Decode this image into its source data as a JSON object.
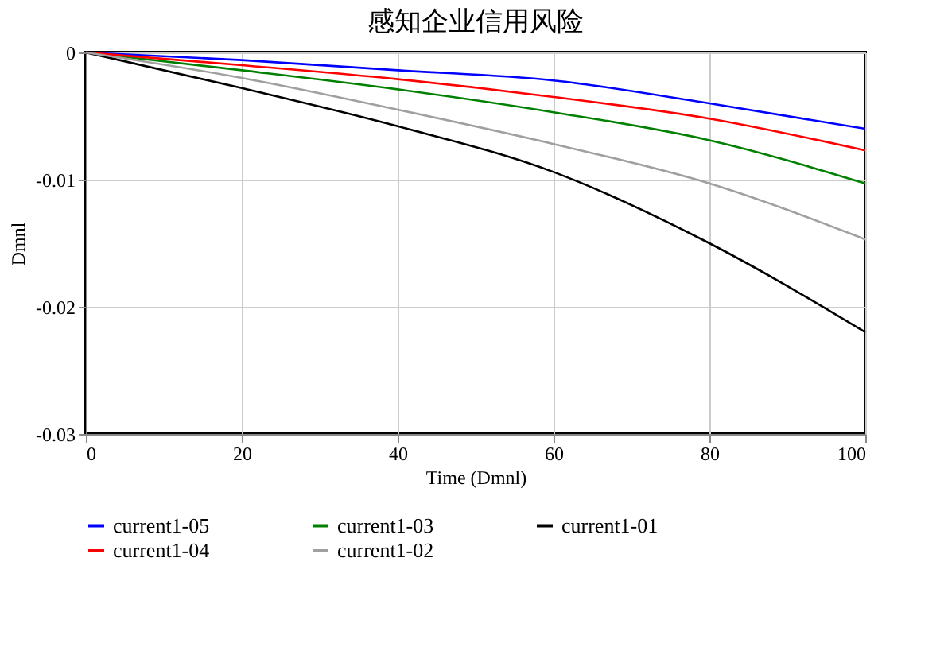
{
  "chart_data": {
    "type": "line",
    "title": "感知企业信用风险",
    "xlabel": "Time (Dmnl)",
    "ylabel": "Dmnl",
    "x": [
      0,
      20,
      40,
      60,
      80,
      100
    ],
    "series": [
      {
        "name": "current1-05",
        "color": "#0000ff",
        "values": [
          0,
          -0.0006,
          -0.0014,
          -0.0022,
          -0.004,
          -0.006
        ]
      },
      {
        "name": "current1-03",
        "color": "#008000",
        "values": [
          0,
          -0.0014,
          -0.0029,
          -0.0047,
          -0.0069,
          -0.0103
        ]
      },
      {
        "name": "current1-01",
        "color": "#000000",
        "values": [
          0,
          -0.0028,
          -0.0058,
          -0.0094,
          -0.015,
          -0.022
        ]
      },
      {
        "name": "current1-04",
        "color": "#ff0000",
        "values": [
          0,
          -0.001,
          -0.0021,
          -0.0035,
          -0.0052,
          -0.0077
        ]
      },
      {
        "name": "current1-02",
        "color": "#a0a0a0",
        "values": [
          0,
          -0.002,
          -0.0045,
          -0.0072,
          -0.0103,
          -0.0147
        ]
      }
    ],
    "xlim": [
      0,
      100
    ],
    "xticks": [
      0,
      20,
      40,
      60,
      80,
      100
    ],
    "ylim": [
      -0.03,
      0
    ],
    "yticks": [
      0,
      -0.01,
      -0.02,
      -0.03
    ],
    "grid": true,
    "legend": "bottom",
    "marker": "none",
    "line_style": "solid"
  }
}
